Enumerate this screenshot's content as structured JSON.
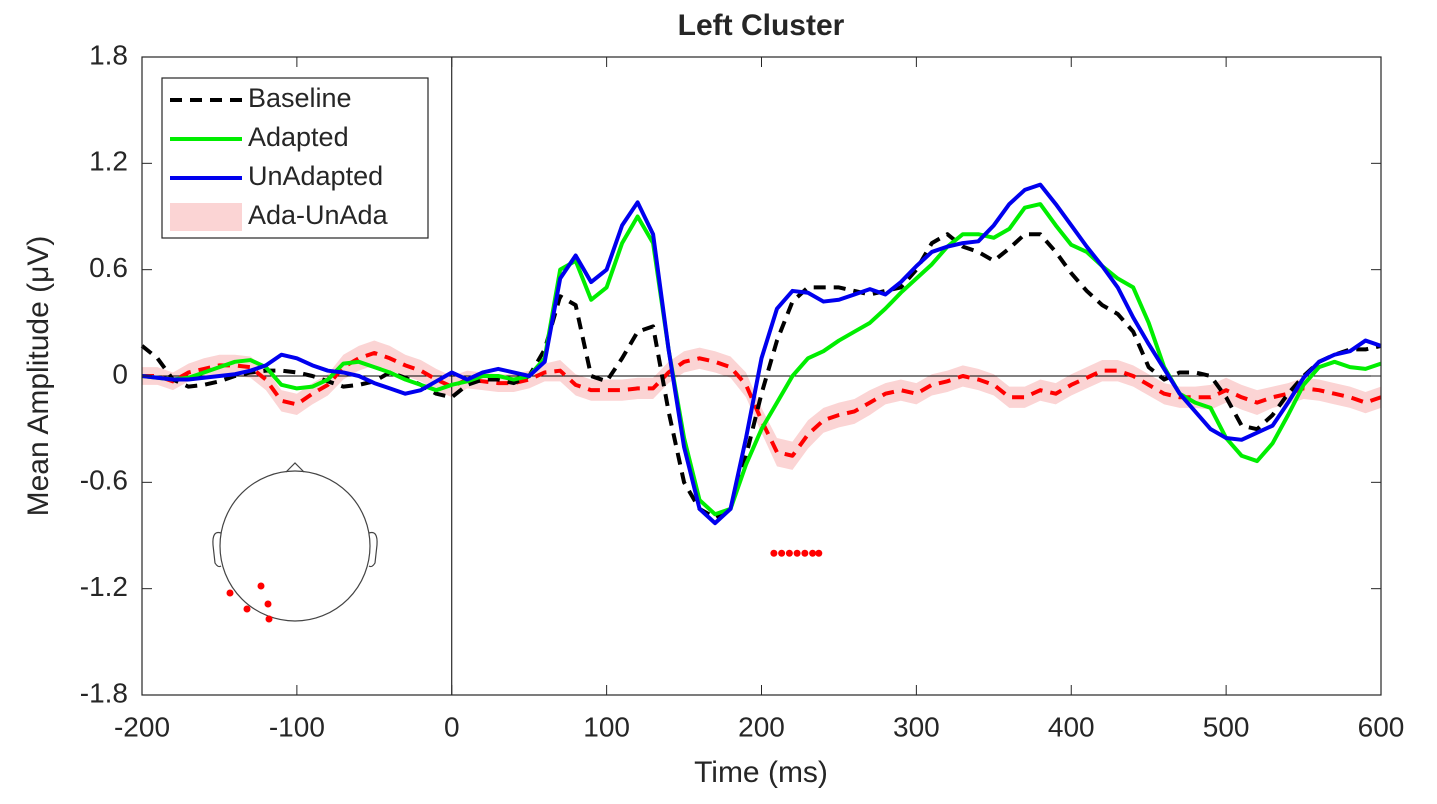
{
  "chart_data": {
    "type": "line",
    "title": "Left Cluster",
    "xlabel": "Time (ms)",
    "ylabel": "Mean Amplitude (μV)",
    "xlim": [
      -200,
      600
    ],
    "ylim": [
      -1.8,
      1.8
    ],
    "xticks": [
      -200,
      -100,
      0,
      100,
      200,
      300,
      400,
      500,
      600
    ],
    "yticks": [
      -1.8,
      -1.2,
      -0.6,
      0,
      0.6,
      1.2,
      1.8
    ],
    "grid": false,
    "legend": "upper left",
    "x": [
      -200,
      -190,
      -180,
      -170,
      -160,
      -150,
      -140,
      -130,
      -120,
      -110,
      -100,
      -90,
      -80,
      -70,
      -60,
      -50,
      -40,
      -30,
      -20,
      -10,
      0,
      10,
      20,
      30,
      40,
      50,
      60,
      70,
      80,
      90,
      100,
      110,
      120,
      130,
      140,
      150,
      160,
      170,
      180,
      190,
      200,
      210,
      220,
      230,
      240,
      250,
      260,
      270,
      280,
      290,
      300,
      310,
      320,
      330,
      340,
      350,
      360,
      370,
      380,
      390,
      400,
      410,
      420,
      430,
      440,
      450,
      460,
      470,
      480,
      490,
      500,
      510,
      520,
      530,
      540,
      550,
      560,
      570,
      580,
      590,
      600
    ],
    "series": [
      {
        "name": "Baseline",
        "color": "#000000",
        "dashed": true,
        "values": [
          0.17,
          0.1,
          -0.02,
          -0.06,
          -0.05,
          -0.03,
          0.0,
          0.02,
          0.03,
          0.03,
          0.02,
          0.0,
          -0.03,
          -0.06,
          -0.05,
          -0.03,
          0.02,
          -0.01,
          -0.05,
          -0.1,
          -0.12,
          -0.05,
          -0.02,
          -0.02,
          -0.04,
          0.0,
          0.15,
          0.45,
          0.4,
          0.0,
          -0.03,
          0.1,
          0.25,
          0.28,
          -0.2,
          -0.6,
          -0.75,
          -0.8,
          -0.75,
          -0.45,
          -0.1,
          0.2,
          0.42,
          0.5,
          0.5,
          0.5,
          0.48,
          0.46,
          0.48,
          0.5,
          0.6,
          0.75,
          0.8,
          0.73,
          0.7,
          0.65,
          0.72,
          0.8,
          0.8,
          0.7,
          0.58,
          0.48,
          0.4,
          0.35,
          0.25,
          0.05,
          -0.02,
          0.02,
          0.02,
          0.0,
          -0.12,
          -0.28,
          -0.3,
          -0.22,
          -0.1,
          0.0,
          0.08,
          0.12,
          0.15,
          0.15,
          0.17
        ]
      },
      {
        "name": "Adapted",
        "color": "#00ee00",
        "dashed": false,
        "values": [
          0.0,
          -0.01,
          -0.02,
          -0.01,
          0.02,
          0.05,
          0.08,
          0.09,
          0.05,
          -0.05,
          -0.07,
          -0.06,
          -0.02,
          0.07,
          0.08,
          0.05,
          0.02,
          -0.02,
          -0.05,
          -0.08,
          -0.05,
          -0.03,
          0.0,
          0.0,
          -0.02,
          0.0,
          0.1,
          0.6,
          0.65,
          0.43,
          0.5,
          0.75,
          0.9,
          0.75,
          0.15,
          -0.35,
          -0.7,
          -0.78,
          -0.75,
          -0.5,
          -0.3,
          -0.15,
          0.0,
          0.1,
          0.14,
          0.2,
          0.25,
          0.3,
          0.38,
          0.47,
          0.55,
          0.63,
          0.73,
          0.8,
          0.8,
          0.78,
          0.83,
          0.95,
          0.97,
          0.85,
          0.74,
          0.7,
          0.62,
          0.55,
          0.5,
          0.3,
          0.05,
          -0.1,
          -0.15,
          -0.18,
          -0.35,
          -0.45,
          -0.48,
          -0.38,
          -0.22,
          -0.05,
          0.05,
          0.08,
          0.05,
          0.04,
          0.07
        ]
      },
      {
        "name": "UnAdapted",
        "color": "#0000ee",
        "dashed": false,
        "values": [
          0.0,
          -0.01,
          -0.02,
          -0.02,
          -0.01,
          0.0,
          0.01,
          0.03,
          0.06,
          0.12,
          0.1,
          0.06,
          0.03,
          0.02,
          0.0,
          -0.04,
          -0.07,
          -0.1,
          -0.08,
          -0.03,
          0.02,
          -0.02,
          0.02,
          0.04,
          0.02,
          0.0,
          0.08,
          0.55,
          0.68,
          0.53,
          0.6,
          0.85,
          0.98,
          0.8,
          0.15,
          -0.4,
          -0.75,
          -0.83,
          -0.75,
          -0.35,
          0.1,
          0.38,
          0.48,
          0.47,
          0.42,
          0.43,
          0.46,
          0.49,
          0.46,
          0.53,
          0.62,
          0.7,
          0.73,
          0.75,
          0.76,
          0.85,
          0.97,
          1.05,
          1.08,
          0.97,
          0.85,
          0.73,
          0.62,
          0.5,
          0.33,
          0.18,
          0.04,
          -0.1,
          -0.2,
          -0.3,
          -0.35,
          -0.36,
          -0.32,
          -0.28,
          -0.15,
          -0.01,
          0.08,
          0.12,
          0.14,
          0.2,
          0.17
        ]
      },
      {
        "name": "Ada-UnAda",
        "color": "#ff0000",
        "band_color": "#fbd4d4",
        "dashed": true,
        "values": [
          0.0,
          0.0,
          -0.03,
          0.02,
          0.04,
          0.06,
          0.06,
          0.05,
          -0.02,
          -0.14,
          -0.16,
          -0.1,
          -0.05,
          0.05,
          0.1,
          0.13,
          0.1,
          0.06,
          0.03,
          -0.02,
          -0.06,
          -0.02,
          -0.03,
          -0.04,
          -0.04,
          -0.02,
          0.02,
          0.03,
          -0.05,
          -0.08,
          -0.08,
          -0.08,
          -0.07,
          -0.07,
          0.02,
          0.08,
          0.1,
          0.08,
          0.05,
          -0.05,
          -0.25,
          -0.43,
          -0.45,
          -0.33,
          -0.25,
          -0.22,
          -0.2,
          -0.15,
          -0.1,
          -0.08,
          -0.1,
          -0.05,
          -0.03,
          0.0,
          -0.02,
          -0.05,
          -0.12,
          -0.12,
          -0.08,
          -0.1,
          -0.05,
          -0.01,
          0.03,
          0.03,
          0.0,
          -0.05,
          -0.1,
          -0.12,
          -0.12,
          -0.12,
          -0.08,
          -0.12,
          -0.15,
          -0.12,
          -0.1,
          -0.07,
          -0.08,
          -0.1,
          -0.12,
          -0.15,
          -0.12
        ],
        "error": [
          0.05,
          0.05,
          0.05,
          0.05,
          0.06,
          0.06,
          0.06,
          0.06,
          0.06,
          0.06,
          0.06,
          0.06,
          0.06,
          0.07,
          0.07,
          0.07,
          0.07,
          0.06,
          0.06,
          0.06,
          0.06,
          0.05,
          0.05,
          0.05,
          0.05,
          0.05,
          0.05,
          0.06,
          0.06,
          0.06,
          0.06,
          0.06,
          0.06,
          0.06,
          0.06,
          0.06,
          0.06,
          0.06,
          0.06,
          0.07,
          0.07,
          0.08,
          0.08,
          0.08,
          0.07,
          0.07,
          0.07,
          0.07,
          0.06,
          0.06,
          0.06,
          0.06,
          0.06,
          0.06,
          0.06,
          0.06,
          0.06,
          0.06,
          0.06,
          0.06,
          0.06,
          0.06,
          0.06,
          0.06,
          0.06,
          0.06,
          0.06,
          0.06,
          0.06,
          0.07,
          0.07,
          0.07,
          0.07,
          0.06,
          0.06,
          0.06,
          0.06,
          0.06,
          0.06,
          0.06,
          0.06
        ]
      }
    ],
    "significance": {
      "color": "#ff0000",
      "x": [
        208,
        213,
        218,
        223,
        228,
        233,
        237
      ],
      "y": [
        -1.0,
        -1.0,
        -1.0,
        -1.0,
        -1.0,
        -1.0,
        -1.0
      ]
    }
  }
}
